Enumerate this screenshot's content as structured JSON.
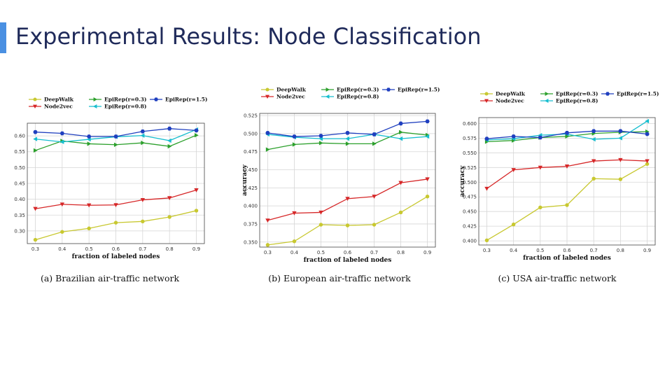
{
  "slide": {
    "title": "Experimental Results: Node Classification",
    "accent_color": "#4a90e2"
  },
  "series_styles": [
    {
      "name": "DeepWalk",
      "color": "#c8c830",
      "marker": "circle"
    },
    {
      "name": "Node2vec",
      "color": "#d62728",
      "marker": "triangle-down"
    },
    {
      "name": "EpiRep(r=0.3)",
      "color": "#2ca02c",
      "marker": "triangle-right"
    },
    {
      "name": "EpiRep(r=0.8)",
      "color": "#17becf",
      "marker": "triangle-left"
    },
    {
      "name": "EpiRep(r=1.5)",
      "color": "#1f3fbf",
      "marker": "hexagon"
    }
  ],
  "chart_data": [
    {
      "type": "line",
      "caption": "(a)  Brazilian air-traffic network",
      "xlabel": "fraction of labeled nodes",
      "ylabel": "",
      "x": [
        0.3,
        0.4,
        0.5,
        0.6,
        0.7,
        0.8,
        0.9
      ],
      "xticks": [
        "0.3",
        "0.4",
        "0.5",
        "0.6",
        "0.7",
        "0.8",
        "0.9"
      ],
      "ylim": [
        0.26,
        0.64
      ],
      "yticks": [
        "0.30",
        "0.35",
        "0.40",
        "0.45",
        "0.50",
        "0.55",
        "0.60"
      ],
      "legend": "top",
      "series": [
        {
          "name": "DeepWalk",
          "values": [
            0.272,
            0.297,
            0.308,
            0.326,
            0.33,
            0.344,
            0.364
          ]
        },
        {
          "name": "Node2vec",
          "values": [
            0.37,
            0.384,
            0.381,
            0.382,
            0.398,
            0.404,
            0.429
          ]
        },
        {
          "name": "EpiRep(r=0.3)",
          "values": [
            0.554,
            0.584,
            0.575,
            0.572,
            0.578,
            0.567,
            0.602
          ]
        },
        {
          "name": "EpiRep(r=0.8)",
          "values": [
            0.59,
            0.581,
            0.589,
            0.597,
            0.601,
            0.585,
            0.62
          ]
        },
        {
          "name": "EpiRep(r=1.5)",
          "values": [
            0.612,
            0.608,
            0.598,
            0.598,
            0.614,
            0.623,
            0.617
          ]
        }
      ]
    },
    {
      "type": "line",
      "caption": "(b)  European air-traffic network",
      "xlabel": "fraction of labeled nodes",
      "ylabel": "accuracy",
      "x": [
        0.3,
        0.4,
        0.5,
        0.6,
        0.7,
        0.8,
        0.9
      ],
      "xticks": [
        "0.3",
        "0.4",
        "0.5",
        "0.6",
        "0.7",
        "0.8",
        "0.9"
      ],
      "ylim": [
        0.343,
        0.528
      ],
      "yticks": [
        "0.350",
        "0.375",
        "0.400",
        "0.425",
        "0.450",
        "0.475",
        "0.500",
        "0.525"
      ],
      "legend": "top",
      "series": [
        {
          "name": "DeepWalk",
          "values": [
            0.346,
            0.351,
            0.374,
            0.373,
            0.374,
            0.391,
            0.413
          ]
        },
        {
          "name": "Node2vec",
          "values": [
            0.38,
            0.39,
            0.391,
            0.41,
            0.413,
            0.432,
            0.437
          ]
        },
        {
          "name": "EpiRep(r=0.3)",
          "values": [
            0.478,
            0.485,
            0.487,
            0.486,
            0.486,
            0.502,
            0.498
          ]
        },
        {
          "name": "EpiRep(r=0.8)",
          "values": [
            0.499,
            0.495,
            0.493,
            0.493,
            0.499,
            0.493,
            0.496
          ]
        },
        {
          "name": "EpiRep(r=1.5)",
          "values": [
            0.501,
            0.496,
            0.497,
            0.501,
            0.499,
            0.514,
            0.517
          ]
        }
      ]
    },
    {
      "type": "line",
      "caption": "(c)  USA air-traffic network",
      "xlabel": "fraction of labeled nodes",
      "ylabel": "accuracy",
      "x": [
        0.3,
        0.4,
        0.5,
        0.6,
        0.7,
        0.8,
        0.9
      ],
      "xticks": [
        "0.3",
        "0.4",
        "0.5",
        "0.6",
        "0.7",
        "0.8",
        "0.9"
      ],
      "ylim": [
        0.393,
        0.61
      ],
      "yticks": [
        "0.400",
        "0.425",
        "0.450",
        "0.475",
        "0.500",
        "0.525",
        "0.550",
        "0.575",
        "0.600"
      ],
      "legend": "top",
      "series": [
        {
          "name": "DeepWalk",
          "values": [
            0.401,
            0.428,
            0.457,
            0.461,
            0.506,
            0.505,
            0.531
          ]
        },
        {
          "name": "Node2vec",
          "values": [
            0.489,
            0.521,
            0.525,
            0.527,
            0.536,
            0.538,
            0.536
          ]
        },
        {
          "name": "EpiRep(r=0.3)",
          "values": [
            0.569,
            0.571,
            0.576,
            0.578,
            0.583,
            0.585,
            0.586
          ]
        },
        {
          "name": "EpiRep(r=0.8)",
          "values": [
            0.572,
            0.574,
            0.58,
            0.582,
            0.573,
            0.575,
            0.604
          ]
        },
        {
          "name": "EpiRep(r=1.5)",
          "values": [
            0.574,
            0.578,
            0.576,
            0.584,
            0.587,
            0.587,
            0.582
          ]
        }
      ]
    }
  ]
}
